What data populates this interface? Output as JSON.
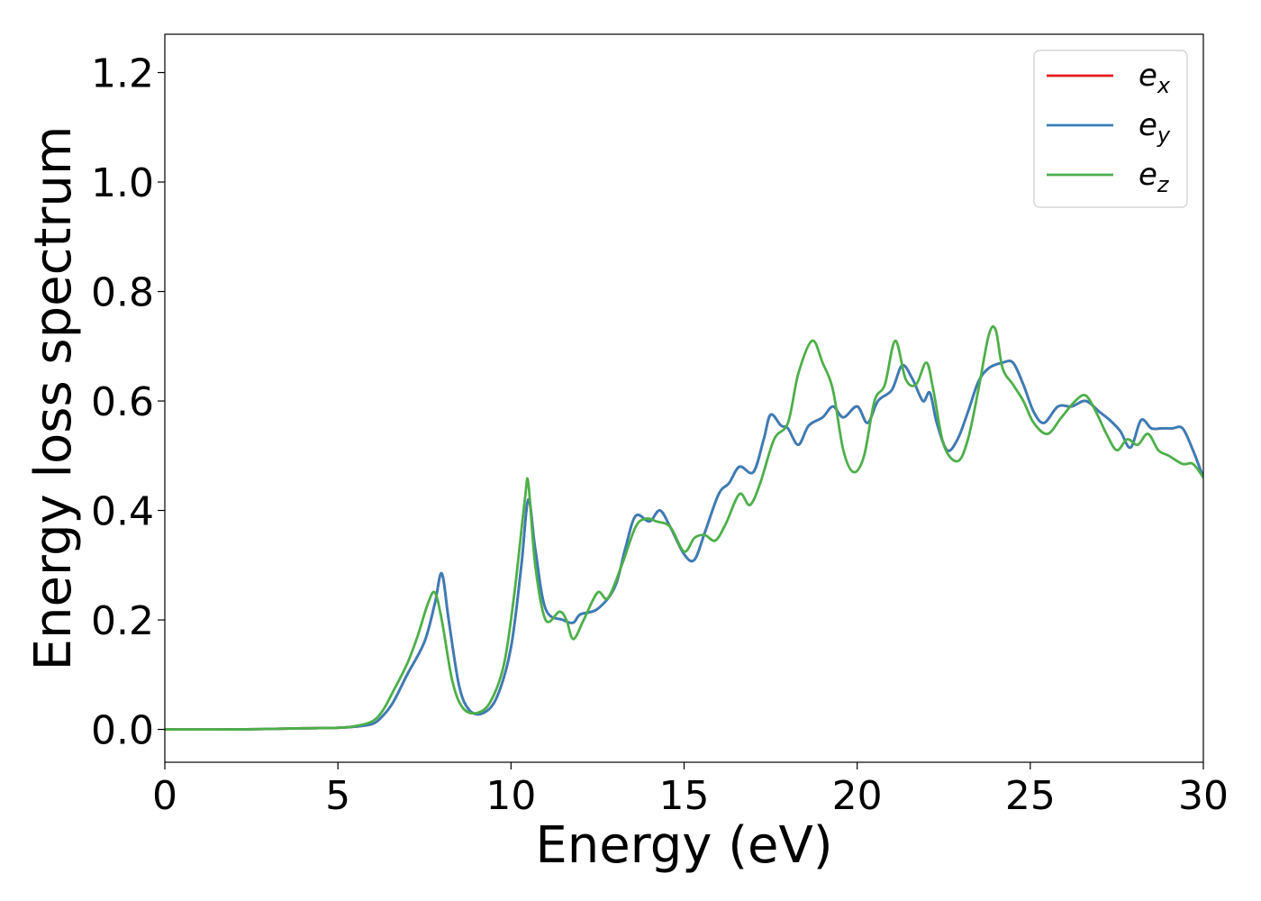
{
  "chart_data": {
    "type": "line",
    "title": "",
    "xlabel": "Energy (eV)",
    "ylabel": "Energy loss spectrum",
    "xlim": [
      0,
      30
    ],
    "ylim": [
      -0.06,
      1.27
    ],
    "xticks": [
      0,
      5,
      10,
      15,
      20,
      25,
      30
    ],
    "xtick_labels": [
      "0",
      "5",
      "10",
      "15",
      "20",
      "25",
      "30"
    ],
    "yticks": [
      0.0,
      0.2,
      0.4,
      0.6,
      0.8,
      1.0,
      1.2
    ],
    "ytick_labels": [
      "0.0",
      "0.2",
      "0.4",
      "0.6",
      "0.8",
      "1.0",
      "1.2"
    ],
    "grid": false,
    "legend_position": "top-right",
    "series": [
      {
        "name": "e",
        "subscript": "x",
        "color": "#e41a1c",
        "x": [
          0,
          2,
          4,
          5,
          5.5,
          6,
          6.3,
          6.6,
          7.0,
          7.5,
          7.8,
          8.0,
          8.2,
          8.5,
          8.8,
          9.2,
          9.6,
          10.0,
          10.3,
          10.5,
          10.7,
          11.0,
          11.5,
          11.8,
          12.0,
          12.5,
          13.0,
          13.3,
          13.6,
          14.0,
          14.3,
          14.6,
          15.0,
          15.3,
          15.6,
          16.0,
          16.3,
          16.6,
          17.0,
          17.3,
          17.5,
          17.8,
          18.0,
          18.3,
          18.6,
          19.0,
          19.3,
          19.6,
          20.0,
          20.3,
          20.6,
          21.0,
          21.3,
          21.6,
          21.9,
          22.1,
          22.3,
          22.6,
          22.9,
          23.2,
          23.5,
          23.8,
          24.2,
          24.5,
          24.8,
          25.1,
          25.4,
          25.8,
          26.2,
          26.6,
          27.0,
          27.3,
          27.6,
          27.9,
          28.2,
          28.5,
          28.8,
          29.1,
          29.4,
          29.7,
          30.0
        ],
        "y": [
          0.0,
          0.0,
          0.002,
          0.003,
          0.005,
          0.01,
          0.025,
          0.05,
          0.1,
          0.16,
          0.23,
          0.285,
          0.2,
          0.08,
          0.035,
          0.03,
          0.06,
          0.15,
          0.3,
          0.42,
          0.33,
          0.22,
          0.2,
          0.195,
          0.21,
          0.22,
          0.26,
          0.33,
          0.39,
          0.38,
          0.4,
          0.37,
          0.32,
          0.31,
          0.36,
          0.43,
          0.45,
          0.48,
          0.47,
          0.53,
          0.575,
          0.555,
          0.55,
          0.52,
          0.555,
          0.57,
          0.59,
          0.57,
          0.59,
          0.56,
          0.6,
          0.62,
          0.665,
          0.64,
          0.6,
          0.615,
          0.56,
          0.51,
          0.53,
          0.58,
          0.635,
          0.66,
          0.67,
          0.67,
          0.63,
          0.58,
          0.56,
          0.59,
          0.59,
          0.6,
          0.58,
          0.565,
          0.545,
          0.515,
          0.565,
          0.55,
          0.55,
          0.55,
          0.55,
          0.51,
          0.46
        ]
      },
      {
        "name": "e",
        "subscript": "y",
        "color": "#377eb8",
        "x": [
          0,
          2,
          4,
          5,
          5.5,
          6,
          6.3,
          6.6,
          7.0,
          7.5,
          7.8,
          8.0,
          8.2,
          8.5,
          8.8,
          9.2,
          9.6,
          10.0,
          10.3,
          10.5,
          10.7,
          11.0,
          11.5,
          11.8,
          12.0,
          12.5,
          13.0,
          13.3,
          13.6,
          14.0,
          14.3,
          14.6,
          15.0,
          15.3,
          15.6,
          16.0,
          16.3,
          16.6,
          17.0,
          17.3,
          17.5,
          17.8,
          18.0,
          18.3,
          18.6,
          19.0,
          19.3,
          19.6,
          20.0,
          20.3,
          20.6,
          21.0,
          21.3,
          21.6,
          21.9,
          22.1,
          22.3,
          22.6,
          22.9,
          23.2,
          23.5,
          23.8,
          24.2,
          24.5,
          24.8,
          25.1,
          25.4,
          25.8,
          26.2,
          26.6,
          27.0,
          27.3,
          27.6,
          27.9,
          28.2,
          28.5,
          28.8,
          29.1,
          29.4,
          29.7,
          30.0
        ],
        "y": [
          0.0,
          0.0,
          0.002,
          0.003,
          0.005,
          0.01,
          0.025,
          0.05,
          0.1,
          0.16,
          0.23,
          0.285,
          0.2,
          0.08,
          0.035,
          0.03,
          0.06,
          0.15,
          0.3,
          0.42,
          0.33,
          0.22,
          0.2,
          0.195,
          0.21,
          0.22,
          0.26,
          0.33,
          0.39,
          0.38,
          0.4,
          0.37,
          0.32,
          0.31,
          0.36,
          0.43,
          0.45,
          0.48,
          0.47,
          0.53,
          0.575,
          0.555,
          0.55,
          0.52,
          0.555,
          0.57,
          0.59,
          0.57,
          0.59,
          0.56,
          0.6,
          0.62,
          0.665,
          0.64,
          0.6,
          0.615,
          0.56,
          0.51,
          0.53,
          0.58,
          0.635,
          0.66,
          0.67,
          0.67,
          0.63,
          0.58,
          0.56,
          0.59,
          0.59,
          0.6,
          0.58,
          0.565,
          0.545,
          0.515,
          0.565,
          0.55,
          0.55,
          0.55,
          0.55,
          0.51,
          0.46
        ]
      },
      {
        "name": "e",
        "subscript": "z",
        "color": "#4daf4a",
        "x": [
          0,
          2,
          4,
          5,
          5.5,
          6,
          6.3,
          6.6,
          7.0,
          7.3,
          7.6,
          7.8,
          8.0,
          8.3,
          8.6,
          9.0,
          9.4,
          9.8,
          10.1,
          10.4,
          10.5,
          10.7,
          11.0,
          11.4,
          11.6,
          11.8,
          12.1,
          12.5,
          12.8,
          13.2,
          13.6,
          13.9,
          14.2,
          14.6,
          15.0,
          15.3,
          15.6,
          15.9,
          16.2,
          16.6,
          16.9,
          17.2,
          17.6,
          18.0,
          18.3,
          18.7,
          19.0,
          19.3,
          19.6,
          19.9,
          20.2,
          20.5,
          20.8,
          21.1,
          21.4,
          21.7,
          22.0,
          22.2,
          22.5,
          22.9,
          23.2,
          23.5,
          23.8,
          24.0,
          24.2,
          24.5,
          24.8,
          25.1,
          25.5,
          25.9,
          26.3,
          26.6,
          26.9,
          27.2,
          27.5,
          27.8,
          28.1,
          28.4,
          28.7,
          29.0,
          29.4,
          29.7,
          30.0
        ],
        "y": [
          0.0,
          0.0,
          0.002,
          0.003,
          0.006,
          0.015,
          0.035,
          0.07,
          0.12,
          0.17,
          0.23,
          0.25,
          0.2,
          0.09,
          0.04,
          0.03,
          0.05,
          0.12,
          0.25,
          0.42,
          0.45,
          0.3,
          0.2,
          0.215,
          0.2,
          0.165,
          0.2,
          0.25,
          0.24,
          0.3,
          0.37,
          0.385,
          0.38,
          0.37,
          0.325,
          0.35,
          0.355,
          0.345,
          0.375,
          0.43,
          0.41,
          0.45,
          0.53,
          0.56,
          0.65,
          0.71,
          0.67,
          0.62,
          0.51,
          0.47,
          0.5,
          0.6,
          0.63,
          0.71,
          0.64,
          0.63,
          0.67,
          0.62,
          0.52,
          0.49,
          0.53,
          0.62,
          0.72,
          0.73,
          0.66,
          0.63,
          0.6,
          0.56,
          0.54,
          0.57,
          0.6,
          0.61,
          0.58,
          0.54,
          0.51,
          0.53,
          0.52,
          0.54,
          0.51,
          0.5,
          0.485,
          0.485,
          0.46
        ]
      }
    ]
  }
}
